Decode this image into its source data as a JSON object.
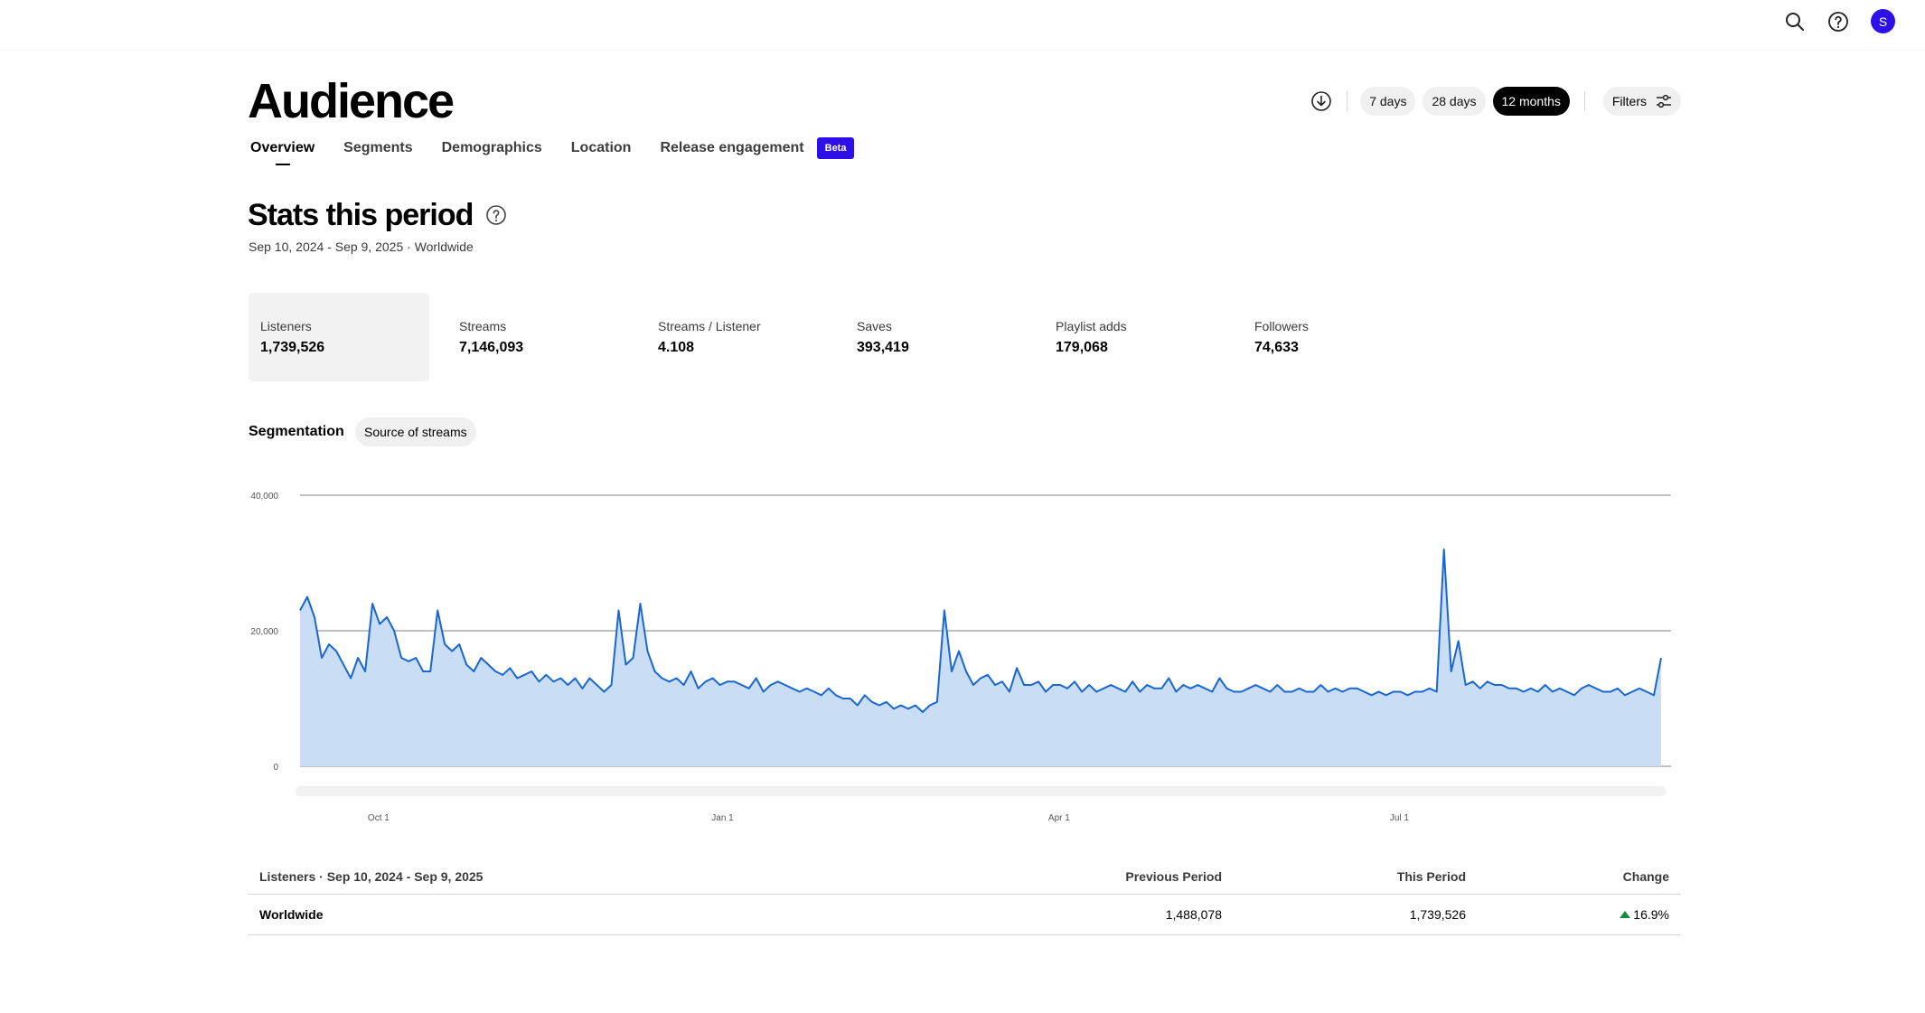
{
  "header": {
    "icons": [
      "search-icon",
      "help-icon"
    ],
    "avatar_initial": "S"
  },
  "page": {
    "title": "Audience",
    "tabs": [
      {
        "label": "Overview",
        "active": true
      },
      {
        "label": "Segments"
      },
      {
        "label": "Demographics"
      },
      {
        "label": "Location"
      },
      {
        "label": "Release engagement",
        "badge": "Beta"
      }
    ]
  },
  "controls": {
    "ranges": [
      "7 days",
      "28 days",
      "12 months"
    ],
    "active_range": "12 months",
    "filters_label": "Filters"
  },
  "stats": {
    "title": "Stats this period",
    "subtitle": "Sep 10, 2024 - Sep 9, 2025 · Worldwide",
    "items": [
      {
        "label": "Listeners",
        "value": "1,739,526"
      },
      {
        "label": "Streams",
        "value": "7,146,093"
      },
      {
        "label": "Streams / Listener",
        "value": "4.108"
      },
      {
        "label": "Saves",
        "value": "393,419"
      },
      {
        "label": "Playlist adds",
        "value": "179,068"
      },
      {
        "label": "Followers",
        "value": "74,633"
      }
    ]
  },
  "segmentation": {
    "label": "Segmentation",
    "pill": "Source of streams"
  },
  "chart_data": {
    "type": "area",
    "ylim": [
      0,
      40000
    ],
    "yticks": [
      "0",
      "20,000",
      "40,000"
    ],
    "xticks": [
      "Oct 1",
      "Jan 1",
      "Apr 1",
      "Jul 1"
    ],
    "x_start": "Sep 10, 2024",
    "x_end": "Sep 9, 2025",
    "series_color": "#1967d2",
    "fill_color": "#c9ddf5",
    "values": [
      23000,
      25000,
      22000,
      16000,
      18000,
      17000,
      15000,
      13000,
      16000,
      14000,
      24000,
      21000,
      22000,
      20000,
      16000,
      15500,
      16000,
      14000,
      14000,
      23000,
      18000,
      17000,
      18000,
      15000,
      14000,
      16000,
      15000,
      14000,
      13500,
      14500,
      13000,
      13500,
      14000,
      12500,
      13500,
      12500,
      13000,
      12000,
      13000,
      11500,
      13000,
      12000,
      11000,
      12000,
      23000,
      15000,
      16000,
      24000,
      17000,
      14000,
      13000,
      12500,
      13000,
      12000,
      14000,
      11500,
      12500,
      13000,
      12000,
      12500,
      12500,
      12000,
      11500,
      13000,
      11000,
      12000,
      12500,
      12000,
      11500,
      11000,
      11500,
      11000,
      10500,
      11500,
      10500,
      10000,
      10000,
      9000,
      10500,
      9500,
      9000,
      9500,
      8500,
      9000,
      8500,
      9000,
      8000,
      9000,
      9500,
      23000,
      14000,
      17000,
      14000,
      12000,
      13000,
      13500,
      12000,
      12500,
      11000,
      14500,
      12000,
      12000,
      12500,
      11000,
      12000,
      12000,
      11500,
      12500,
      11000,
      12000,
      11000,
      11500,
      12000,
      11500,
      11000,
      12500,
      11000,
      12000,
      11500,
      11500,
      13000,
      11000,
      12000,
      11500,
      12000,
      11500,
      11000,
      13000,
      11500,
      11000,
      11000,
      11500,
      12000,
      11500,
      11000,
      12000,
      11000,
      11000,
      11500,
      11000,
      11000,
      12000,
      11000,
      11500,
      11000,
      11500,
      11500,
      11000,
      10500,
      11000,
      10500,
      11000,
      11000,
      10500,
      11000,
      11000,
      11500,
      11000,
      32000,
      14000,
      18500,
      12000,
      12500,
      11500,
      12500,
      12000,
      12000,
      11500,
      11500,
      11000,
      11500,
      11000,
      12000,
      11000,
      11500,
      11000,
      10500,
      11500,
      12000,
      11500,
      11000,
      11000,
      11500,
      10500,
      11000,
      11500,
      11000,
      10500,
      16000
    ]
  },
  "table": {
    "head": {
      "label": "Listeners · Sep 10, 2024 - Sep 9, 2025",
      "prev": "Previous Period",
      "this": "This Period",
      "change": "Change"
    },
    "rows": [
      {
        "label": "Worldwide",
        "prev": "1,488,078",
        "this": "1,739,526",
        "change": "16.9%"
      }
    ]
  }
}
